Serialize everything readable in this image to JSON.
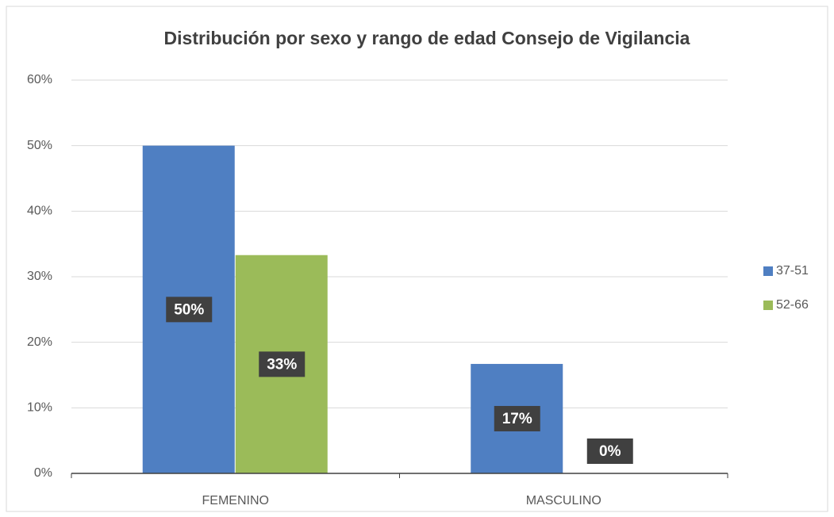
{
  "chart_data": {
    "type": "bar",
    "title": "Distribución por sexo y rango de edad Consejo de Vigilancia",
    "categories": [
      "FEMENINO",
      "MASCULINO"
    ],
    "series": [
      {
        "name": "37-51",
        "color": "#4f7fc2",
        "values": [
          50,
          16.7
        ],
        "value_labels": [
          "50%",
          "17%"
        ]
      },
      {
        "name": "52-66",
        "color": "#9bbb59",
        "values": [
          33.3,
          0
        ],
        "value_labels": [
          "33%",
          "0%"
        ]
      }
    ],
    "ylim": [
      0,
      60
    ],
    "yticks": [
      {
        "value": 0,
        "label": "0%"
      },
      {
        "value": 10,
        "label": "10%"
      },
      {
        "value": 20,
        "label": "20%"
      },
      {
        "value": 30,
        "label": "30%"
      },
      {
        "value": 40,
        "label": "40%"
      },
      {
        "value": 50,
        "label": "50%"
      },
      {
        "value": 60,
        "label": "60%"
      }
    ],
    "grid": true,
    "legend": "right"
  }
}
